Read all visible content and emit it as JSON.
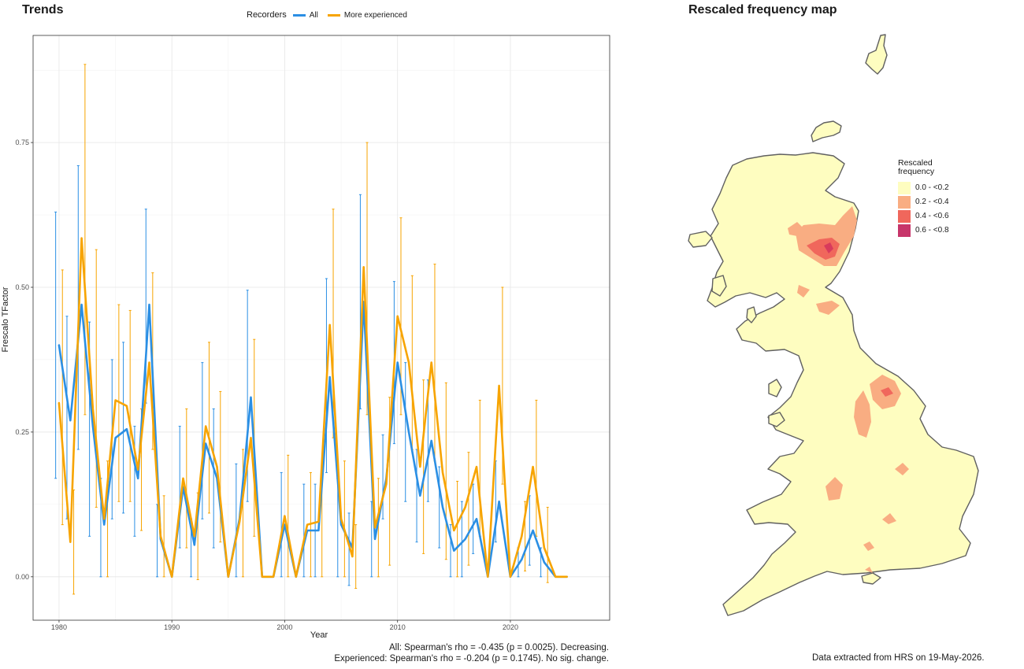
{
  "trends": {
    "title": "Trends",
    "legend_title": "Recorders",
    "ylabel": "Frescalo TFactor",
    "xlabel": "Year",
    "stats_line1": "All: Spearman's rho = -0.435 (p = 0.0025). Decreasing.",
    "stats_line2": "Experienced: Spearman's rho = -0.204 (p = 0.1745). No sig. change."
  },
  "chart_data": {
    "type": "line",
    "x": [
      1980,
      1981,
      1982,
      1983,
      1984,
      1985,
      1986,
      1987,
      1988,
      1989,
      1990,
      1991,
      1992,
      1993,
      1994,
      1995,
      1996,
      1997,
      1998,
      1999,
      2000,
      2001,
      2002,
      2003,
      2004,
      2005,
      2006,
      2007,
      2008,
      2009,
      2010,
      2011,
      2012,
      2013,
      2014,
      2015,
      2016,
      2017,
      2018,
      2019,
      2020,
      2021,
      2022,
      2023,
      2024,
      2025
    ],
    "xlim": [
      1977.7,
      2028.8
    ],
    "ylim": [
      -0.075,
      0.935
    ],
    "x_ticks": [
      1980,
      1990,
      2000,
      2010,
      2020
    ],
    "y_ticks": [
      0.0,
      0.25,
      0.5,
      0.75
    ],
    "y_tick_labels": [
      "0.00",
      "0.25",
      "0.50",
      "0.75"
    ],
    "grid": true,
    "legend_position": "top",
    "series": [
      {
        "name": "All",
        "color": "#2b8fe4",
        "values": [
          0.4,
          0.27,
          0.47,
          0.26,
          0.09,
          0.24,
          0.255,
          0.17,
          0.47,
          0.065,
          0.0,
          0.155,
          0.055,
          0.23,
          0.17,
          0.0,
          0.1,
          0.31,
          0.0,
          0.0,
          0.09,
          0.0,
          0.08,
          0.08,
          0.345,
          0.09,
          0.05,
          0.475,
          0.065,
          0.17,
          0.37,
          0.25,
          0.14,
          0.235,
          0.12,
          0.045,
          0.065,
          0.1,
          0.0,
          0.13,
          0.0,
          0.03,
          0.08,
          0.025,
          0.0,
          0.0
        ],
        "lower": [
          0.17,
          0.1,
          0.22,
          0.07,
          0.0,
          0.1,
          0.11,
          0.07,
          0.3,
          0.0,
          0.0,
          0.05,
          0.0,
          0.1,
          0.05,
          0.0,
          0.0,
          0.13,
          0.0,
          0.0,
          0.0,
          0.0,
          0.0,
          0.0,
          0.18,
          0.0,
          -0.015,
          0.29,
          0.0,
          0.1,
          0.23,
          0.13,
          0.06,
          0.13,
          0.05,
          0.0,
          0.0,
          0.04,
          0.0,
          0.06,
          0.0,
          0.0,
          0.02,
          0.0,
          0.0,
          0.0
        ],
        "upper": [
          0.63,
          0.45,
          0.71,
          0.44,
          0.17,
          0.375,
          0.405,
          0.26,
          0.635,
          0.125,
          0.0,
          0.26,
          0.1,
          0.37,
          0.29,
          0.0,
          0.195,
          0.495,
          0.0,
          0.0,
          0.18,
          0.0,
          0.16,
          0.16,
          0.515,
          0.17,
          0.11,
          0.66,
          0.13,
          0.245,
          0.51,
          0.37,
          0.22,
          0.34,
          0.19,
          0.09,
          0.13,
          0.16,
          0.0,
          0.2,
          0.0,
          0.05,
          0.14,
          0.05,
          0.0,
          0.0
        ]
      },
      {
        "name": "More experienced",
        "color": "#f7a400",
        "values": [
          0.3,
          0.06,
          0.585,
          0.29,
          0.1,
          0.305,
          0.295,
          0.185,
          0.37,
          0.07,
          0.0,
          0.17,
          0.07,
          0.26,
          0.19,
          0.0,
          0.095,
          0.24,
          0.0,
          0.0,
          0.105,
          0.0,
          0.09,
          0.095,
          0.435,
          0.1,
          0.035,
          0.535,
          0.085,
          0.16,
          0.45,
          0.37,
          0.19,
          0.37,
          0.18,
          0.08,
          0.12,
          0.19,
          0.0,
          0.33,
          0.0,
          0.07,
          0.19,
          0.05,
          0.0,
          0.0
        ],
        "lower": [
          0.09,
          -0.03,
          0.28,
          0.12,
          0.0,
          0.13,
          0.13,
          0.08,
          0.22,
          0.0,
          0.0,
          0.05,
          -0.005,
          0.11,
          0.06,
          0.0,
          0.0,
          0.07,
          0.0,
          0.0,
          0.0,
          0.0,
          0.0,
          0.0,
          0.24,
          0.0,
          -0.02,
          0.28,
          0.0,
          0.02,
          0.28,
          0.22,
          0.04,
          0.2,
          0.03,
          0.0,
          0.02,
          0.07,
          0.0,
          0.16,
          0.0,
          0.01,
          0.07,
          -0.01,
          0.0,
          0.0
        ],
        "upper": [
          0.53,
          0.15,
          0.885,
          0.565,
          0.2,
          0.47,
          0.46,
          0.29,
          0.525,
          0.14,
          0.0,
          0.29,
          0.145,
          0.405,
          0.32,
          0.0,
          0.22,
          0.41,
          0.0,
          0.0,
          0.21,
          0.0,
          0.18,
          0.185,
          0.635,
          0.2,
          0.09,
          0.75,
          0.17,
          0.31,
          0.62,
          0.52,
          0.34,
          0.54,
          0.335,
          0.165,
          0.215,
          0.305,
          0.0,
          0.5,
          0.0,
          0.13,
          0.305,
          0.12,
          0.0,
          0.0
        ]
      }
    ]
  },
  "map": {
    "title": "Rescaled frequency map",
    "legend_title": "Rescaled frequency",
    "legend_items": [
      {
        "label": "0.0 - <0.2",
        "color": "#fefdc0"
      },
      {
        "label": "0.2 - <0.4",
        "color": "#f9ad82"
      },
      {
        "label": "0.4 - <0.6",
        "color": "#f0675c"
      },
      {
        "label": "0.6 - <0.8",
        "color": "#c7356a"
      }
    ],
    "footer": "Data extracted from HRS on 19-May-2026."
  }
}
